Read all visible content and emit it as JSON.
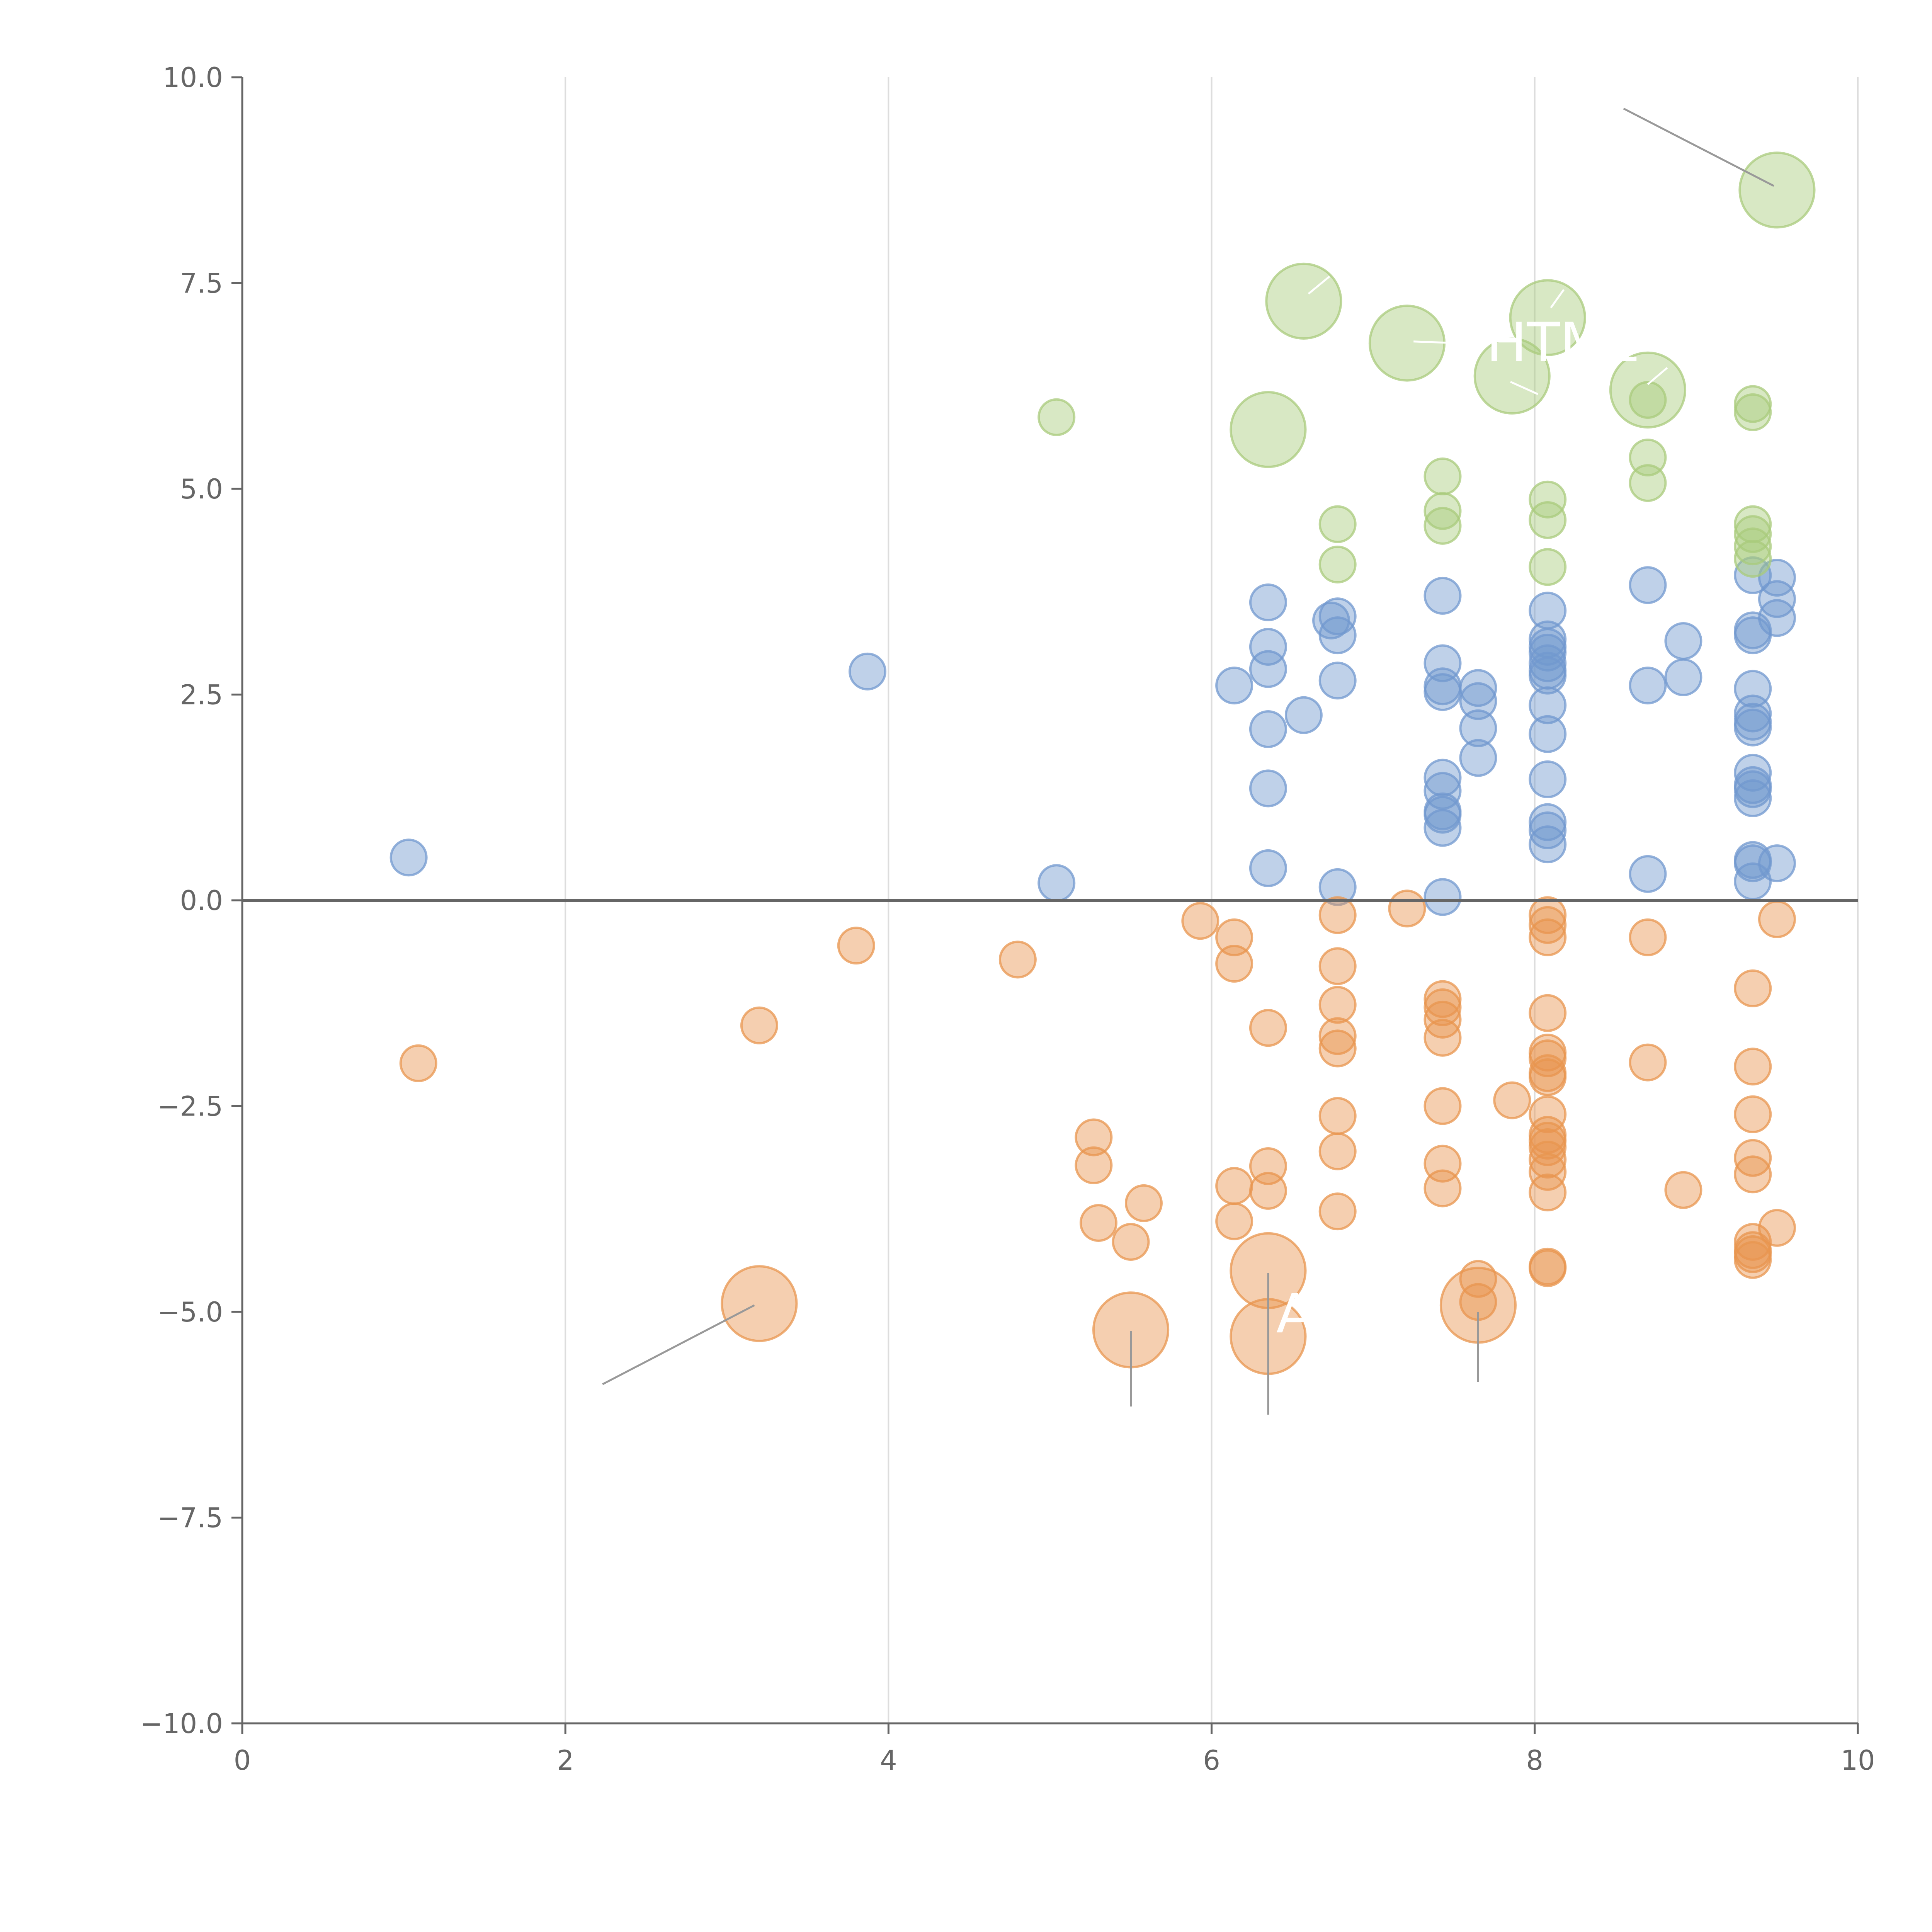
{
  "chart_data": {
    "type": "scatter",
    "title": "",
    "xlabel": "",
    "ylabel": "",
    "xlim": [
      0,
      10
    ],
    "ylim": [
      -10,
      10
    ],
    "x_ticks": [
      "0",
      "2",
      "4",
      "6",
      "8",
      "10"
    ],
    "y_ticks": [
      "10.0",
      "7.5",
      "5.0",
      "2.5",
      "0.0",
      "−2.5",
      "−5.0",
      "−7.5",
      "−10.0"
    ],
    "x_tick_values": [
      0,
      2,
      4,
      6,
      8,
      10
    ],
    "y_tick_values": [
      10,
      7.5,
      5,
      2.5,
      0,
      -2.5,
      -5,
      -7.5,
      -10
    ],
    "grid": "vertical",
    "zero_line": true,
    "colors": {
      "blue": "#7298cf",
      "orange": "#e8954f",
      "green": "#a9cb7c",
      "axis": "#666666",
      "grid": "#dddddd"
    },
    "size_scale": {
      "small": 1,
      "large": 2.1
    },
    "series": [
      {
        "name": "blue",
        "color": "#7298cf",
        "points": [
          [
            1.03,
            0.52
          ],
          [
            3.87,
            2.78
          ],
          [
            5.04,
            0.21
          ],
          [
            6.14,
            2.61
          ],
          [
            6.35,
            3.62
          ],
          [
            6.35,
            3.08
          ],
          [
            6.35,
            2.81
          ],
          [
            6.35,
            2.08
          ],
          [
            6.35,
            1.36
          ],
          [
            6.35,
            0.39
          ],
          [
            6.57,
            2.25
          ],
          [
            6.74,
            3.4
          ],
          [
            6.78,
            3.45
          ],
          [
            6.78,
            3.22
          ],
          [
            6.78,
            2.67
          ],
          [
            6.78,
            0.16
          ],
          [
            7.43,
            3.7
          ],
          [
            7.43,
            2.88
          ],
          [
            7.43,
            2.6
          ],
          [
            7.43,
            2.53
          ],
          [
            7.43,
            1.49
          ],
          [
            7.43,
            1.33
          ],
          [
            7.43,
            1.08
          ],
          [
            7.43,
            1.04
          ],
          [
            7.43,
            0.88
          ],
          [
            7.43,
            0.04
          ],
          [
            7.65,
            2.58
          ],
          [
            7.65,
            2.42
          ],
          [
            7.65,
            2.09
          ],
          [
            7.65,
            1.73
          ],
          [
            8.08,
            3.52
          ],
          [
            8.08,
            3.17
          ],
          [
            8.08,
            3.08
          ],
          [
            8.08,
            3.01
          ],
          [
            8.08,
            2.88
          ],
          [
            8.08,
            2.79
          ],
          [
            8.08,
            2.73
          ],
          [
            8.08,
            2.37
          ],
          [
            8.08,
            2.02
          ],
          [
            8.08,
            1.47
          ],
          [
            8.08,
            0.95
          ],
          [
            8.08,
            0.85
          ],
          [
            8.08,
            0.68
          ],
          [
            8.7,
            3.83
          ],
          [
            8.7,
            2.61
          ],
          [
            8.7,
            0.32
          ],
          [
            8.92,
            3.15
          ],
          [
            8.92,
            2.71
          ],
          [
            9.35,
            3.95
          ],
          [
            9.35,
            3.28
          ],
          [
            9.35,
            3.22
          ],
          [
            9.35,
            2.57
          ],
          [
            9.35,
            2.27
          ],
          [
            9.35,
            2.17
          ],
          [
            9.35,
            2.1
          ],
          [
            9.35,
            1.55
          ],
          [
            9.35,
            1.4
          ],
          [
            9.35,
            1.35
          ],
          [
            9.35,
            1.24
          ],
          [
            9.35,
            0.49
          ],
          [
            9.35,
            0.45
          ],
          [
            9.35,
            0.23
          ],
          [
            9.5,
            3.92
          ],
          [
            9.5,
            3.66
          ],
          [
            9.5,
            3.43
          ],
          [
            9.5,
            0.45
          ]
        ]
      },
      {
        "name": "orange",
        "color": "#e8954f",
        "points": [
          [
            1.09,
            -1.98
          ],
          [
            3.2,
            -1.52
          ],
          [
            3.8,
            -0.55
          ],
          [
            4.8,
            -0.72
          ],
          [
            5.27,
            -2.88
          ],
          [
            5.27,
            -3.22
          ],
          [
            5.3,
            -3.92
          ],
          [
            5.5,
            -4.15
          ],
          [
            5.58,
            -3.68
          ],
          [
            5.93,
            -0.25
          ],
          [
            6.14,
            -0.45
          ],
          [
            6.14,
            -0.77
          ],
          [
            6.14,
            -3.47
          ],
          [
            6.14,
            -3.9
          ],
          [
            6.35,
            -1.55
          ],
          [
            6.35,
            -3.23
          ],
          [
            6.35,
            -3.53
          ],
          [
            6.78,
            -0.18
          ],
          [
            6.78,
            -0.8
          ],
          [
            6.78,
            -1.27
          ],
          [
            6.78,
            -1.65
          ],
          [
            6.78,
            -1.8
          ],
          [
            6.78,
            -2.62
          ],
          [
            6.78,
            -3.05
          ],
          [
            6.78,
            -3.78
          ],
          [
            7.21,
            -0.1
          ],
          [
            7.43,
            -1.2
          ],
          [
            7.43,
            -1.3
          ],
          [
            7.43,
            -1.45
          ],
          [
            7.43,
            -1.67
          ],
          [
            7.43,
            -2.5
          ],
          [
            7.43,
            -3.2
          ],
          [
            7.43,
            -3.5
          ],
          [
            7.65,
            -4.6
          ],
          [
            7.65,
            -4.88
          ],
          [
            7.86,
            -2.43
          ],
          [
            8.08,
            -0.18
          ],
          [
            8.08,
            -0.3
          ],
          [
            8.08,
            -0.45
          ],
          [
            8.08,
            -1.37
          ],
          [
            8.08,
            -1.85
          ],
          [
            8.08,
            -1.92
          ],
          [
            8.08,
            -2.1
          ],
          [
            8.08,
            -2.15
          ],
          [
            8.08,
            -2.6
          ],
          [
            8.08,
            -2.85
          ],
          [
            8.08,
            -2.92
          ],
          [
            8.08,
            -3.0
          ],
          [
            8.08,
            -3.15
          ],
          [
            8.08,
            -3.3
          ],
          [
            8.08,
            -3.55
          ],
          [
            8.08,
            -4.45
          ],
          [
            8.08,
            -4.47
          ],
          [
            8.7,
            -0.45
          ],
          [
            8.7,
            -1.97
          ],
          [
            8.92,
            -3.52
          ],
          [
            9.35,
            -1.07
          ],
          [
            9.35,
            -2.02
          ],
          [
            9.35,
            -2.6
          ],
          [
            9.35,
            -3.13
          ],
          [
            9.35,
            -3.33
          ],
          [
            9.35,
            -4.15
          ],
          [
            9.35,
            -4.25
          ],
          [
            9.35,
            -4.3
          ],
          [
            9.35,
            -4.37
          ],
          [
            9.5,
            -0.23
          ],
          [
            9.5,
            -3.98
          ]
        ],
        "large_points": [
          [
            3.2,
            -4.9
          ],
          [
            5.5,
            -5.22
          ],
          [
            6.35,
            -4.5
          ],
          [
            6.35,
            -5.3
          ],
          [
            7.65,
            -4.92
          ]
        ]
      },
      {
        "name": "green",
        "color": "#a9cb7c",
        "points": [
          [
            5.04,
            5.87
          ],
          [
            6.78,
            4.57
          ],
          [
            6.78,
            4.08
          ],
          [
            7.43,
            5.15
          ],
          [
            7.43,
            4.73
          ],
          [
            7.43,
            4.55
          ],
          [
            8.08,
            4.87
          ],
          [
            8.08,
            4.62
          ],
          [
            8.08,
            4.05
          ],
          [
            8.7,
            6.08
          ],
          [
            8.7,
            5.38
          ],
          [
            8.7,
            5.07
          ],
          [
            9.35,
            6.03
          ],
          [
            9.35,
            5.93
          ],
          [
            9.35,
            4.57
          ],
          [
            9.35,
            4.45
          ],
          [
            9.35,
            4.3
          ],
          [
            9.35,
            4.15
          ]
        ],
        "large_points": [
          [
            6.35,
            5.72
          ],
          [
            6.57,
            7.28
          ],
          [
            7.21,
            6.77
          ],
          [
            7.86,
            6.37
          ],
          [
            8.08,
            7.08
          ],
          [
            8.7,
            6.2
          ],
          [
            9.5,
            8.63
          ]
        ]
      }
    ],
    "annotations": [
      {
        "text": "A"
      },
      {
        "text": "HTML"
      }
    ],
    "leader_lines": [
      [
        [
          3.17,
          -4.92
        ],
        [
          2.23,
          -5.88
        ]
      ],
      [
        [
          5.5,
          -5.23
        ],
        [
          5.5,
          -6.15
        ]
      ],
      [
        [
          6.35,
          -4.53
        ],
        [
          6.35,
          -6.25
        ]
      ],
      [
        [
          7.65,
          -5.0
        ],
        [
          7.65,
          -5.85
        ]
      ],
      [
        [
          9.48,
          8.68
        ],
        [
          8.55,
          9.62
        ]
      ]
    ],
    "white_leader_lines": [
      [
        [
          6.73,
          7.58
        ],
        [
          6.6,
          7.37
        ]
      ],
      [
        [
          7.52,
          6.77
        ],
        [
          7.25,
          6.79
        ]
      ],
      [
        [
          8.02,
          6.15
        ],
        [
          7.85,
          6.3
        ]
      ],
      [
        [
          8.18,
          7.42
        ],
        [
          8.1,
          7.2
        ]
      ],
      [
        [
          8.82,
          6.47
        ],
        [
          8.7,
          6.27
        ]
      ]
    ]
  }
}
